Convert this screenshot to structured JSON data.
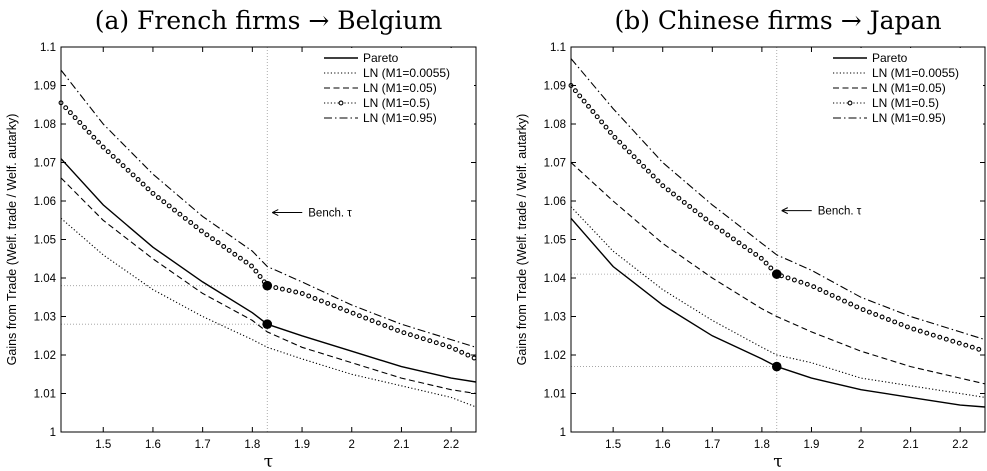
{
  "chart_data": [
    {
      "type": "line",
      "title": "(a) French firms → Belgium",
      "xlabel": "τ",
      "ylabel": "Gains from Trade (Welf. trade / Welf. autarky)",
      "xlim": [
        1.415,
        2.25
      ],
      "ylim": [
        1.0,
        1.1
      ],
      "xticks": [
        "1.5",
        "1.6",
        "1.7",
        "1.8",
        "1.9",
        "2",
        "2.1",
        "2.2"
      ],
      "yticks": [
        "1",
        "1.01",
        "1.02",
        "1.03",
        "1.04",
        "1.05",
        "1.06",
        "1.07",
        "1.08",
        "1.09",
        "1.1"
      ],
      "legend_position": "top-right",
      "x": [
        1.415,
        1.5,
        1.6,
        1.7,
        1.8,
        1.83,
        1.9,
        2.0,
        2.1,
        2.2,
        2.25
      ],
      "series": [
        {
          "name": "Pareto",
          "style": "solid",
          "values": [
            1.071,
            1.059,
            1.048,
            1.039,
            1.031,
            1.028,
            1.025,
            1.021,
            1.017,
            1.014,
            1.013
          ]
        },
        {
          "name": "LN (M1=0.0055)",
          "style": "dotted",
          "values": [
            1.0555,
            1.046,
            1.037,
            1.03,
            1.024,
            1.022,
            1.019,
            1.015,
            1.012,
            1.009,
            1.0065
          ]
        },
        {
          "name": "LN (M1=0.05)",
          "style": "dashed",
          "values": [
            1.066,
            1.055,
            1.045,
            1.036,
            1.029,
            1.026,
            1.022,
            1.018,
            1.014,
            1.011,
            1.01
          ]
        },
        {
          "name": "LN (M1=0.5)",
          "style": "circles",
          "values": [
            1.0855,
            1.074,
            1.062,
            1.052,
            1.043,
            1.038,
            1.036,
            1.031,
            1.026,
            1.022,
            1.019
          ]
        },
        {
          "name": "LN (M1=0.95)",
          "style": "dashdot",
          "values": [
            1.094,
            1.08,
            1.067,
            1.056,
            1.047,
            1.043,
            1.039,
            1.033,
            1.028,
            1.024,
            1.022
          ]
        }
      ],
      "markers": [
        {
          "x": 1.83,
          "y": 1.038
        },
        {
          "x": 1.83,
          "y": 1.028
        }
      ],
      "annotation": "Bench. τ",
      "annotation_y": 1.057,
      "vline_x": 1.83,
      "hlines": [
        1.038,
        1.028
      ]
    },
    {
      "type": "line",
      "title": "(b) Chinese firms → Japan",
      "xlabel": "τ",
      "ylabel": "Gains from Trade (Welf. trade / Welf. autarky)",
      "xlim": [
        1.415,
        2.25
      ],
      "ylim": [
        1.0,
        1.1
      ],
      "xticks": [
        "1.5",
        "1.6",
        "1.7",
        "1.8",
        "1.9",
        "2",
        "2.1",
        "2.2"
      ],
      "yticks": [
        "1",
        "1.01",
        "1.02",
        "1.03",
        "1.04",
        "1.05",
        "1.06",
        "1.07",
        "1.08",
        "1.09",
        "1.1"
      ],
      "legend_position": "top-right",
      "x": [
        1.415,
        1.5,
        1.6,
        1.7,
        1.8,
        1.83,
        1.9,
        2.0,
        2.1,
        2.2,
        2.25
      ],
      "series": [
        {
          "name": "Pareto",
          "style": "solid",
          "values": [
            1.0555,
            1.043,
            1.033,
            1.025,
            1.019,
            1.017,
            1.014,
            1.011,
            1.009,
            1.007,
            1.0065
          ]
        },
        {
          "name": "LN (M1=0.0055)",
          "style": "dotted",
          "values": [
            1.0585,
            1.047,
            1.037,
            1.029,
            1.022,
            1.02,
            1.018,
            1.014,
            1.012,
            1.01,
            1.009
          ]
        },
        {
          "name": "LN (M1=0.05)",
          "style": "dashed",
          "values": [
            1.07,
            1.06,
            1.049,
            1.04,
            1.032,
            1.03,
            1.026,
            1.021,
            1.017,
            1.014,
            1.0125
          ]
        },
        {
          "name": "LN (M1=0.5)",
          "style": "circles",
          "values": [
            1.09,
            1.077,
            1.064,
            1.054,
            1.045,
            1.041,
            1.038,
            1.032,
            1.027,
            1.023,
            1.021
          ]
        },
        {
          "name": "LN (M1=0.95)",
          "style": "dashdot",
          "values": [
            1.097,
            1.084,
            1.07,
            1.059,
            1.049,
            1.046,
            1.042,
            1.035,
            1.03,
            1.026,
            1.024
          ]
        }
      ],
      "markers": [
        {
          "x": 1.83,
          "y": 1.041
        },
        {
          "x": 1.83,
          "y": 1.017
        }
      ],
      "annotation": "Bench. τ",
      "annotation_y": 1.0575,
      "vline_x": 1.83,
      "hlines": [
        1.041,
        1.017
      ]
    }
  ]
}
